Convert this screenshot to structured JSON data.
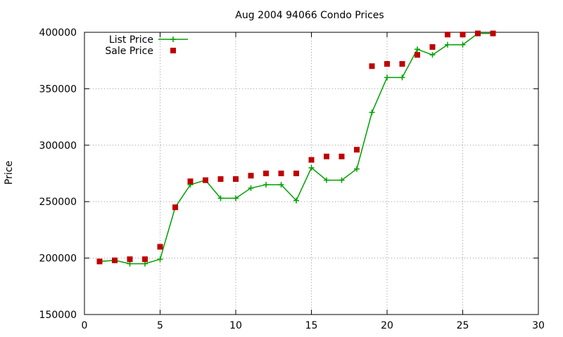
{
  "chart_data": {
    "type": "line",
    "title": "Aug 2004 94066 Condo Prices",
    "xlabel": "",
    "ylabel": "Price",
    "xlim": [
      0,
      30
    ],
    "ylim": [
      150000,
      400000
    ],
    "x_ticks": [
      0,
      5,
      10,
      15,
      20,
      25,
      30
    ],
    "y_ticks": [
      150000,
      200000,
      250000,
      300000,
      350000,
      400000
    ],
    "grid": true,
    "legend_position": "top-left",
    "series": [
      {
        "name": "List Price",
        "style": "line-with-plus-markers",
        "color": "#00a000",
        "x": [
          1,
          2,
          3,
          4,
          5,
          6,
          7,
          8,
          9,
          10,
          11,
          12,
          13,
          14,
          15,
          16,
          17,
          18,
          19,
          20,
          21,
          22,
          23,
          24,
          25,
          26,
          27
        ],
        "values": [
          197000,
          198000,
          195000,
          195000,
          199000,
          245000,
          265000,
          269000,
          253000,
          253000,
          262000,
          265000,
          265000,
          251000,
          280000,
          269000,
          269000,
          279000,
          329000,
          360000,
          360000,
          385000,
          380000,
          389000,
          389000,
          399000,
          399000
        ]
      },
      {
        "name": "Sale Price",
        "style": "square-markers",
        "color": "#c00000",
        "x": [
          1,
          2,
          3,
          4,
          5,
          6,
          7,
          8,
          9,
          10,
          11,
          12,
          13,
          14,
          15,
          16,
          17,
          18,
          19,
          20,
          21,
          22,
          23,
          24,
          25,
          26,
          27
        ],
        "values": [
          197000,
          198000,
          199000,
          199000,
          210000,
          245000,
          268000,
          269000,
          270000,
          270000,
          273000,
          275000,
          275000,
          275000,
          287000,
          290000,
          290000,
          296000,
          370000,
          372000,
          372000,
          380000,
          387000,
          398000,
          398000,
          399000,
          399000
        ]
      }
    ]
  }
}
